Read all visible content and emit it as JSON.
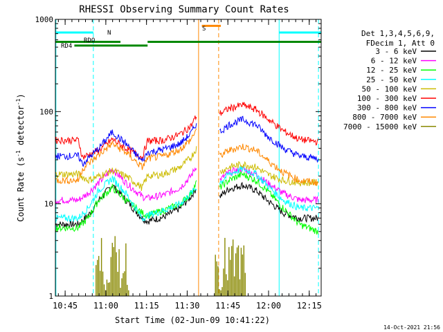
{
  "chart_data": {
    "type": "line",
    "title": "RHESSI Observing Summary Count Rates",
    "xlabel": "Start Time (02-Jun-09 10:41:22)",
    "ylabel_prefix": "Count Rate (s",
    "ylabel_sup1": "-1",
    "ylabel_mid": " detector",
    "ylabel_sup2": "-1",
    "ylabel_suffix": ")",
    "x_unit": "minutes since 10:41:22",
    "xlim": [
      0,
      98
    ],
    "ylim": [
      1,
      1000
    ],
    "yscale": "log",
    "x_ticks": [
      {
        "label": "10:45",
        "value": 3.6
      },
      {
        "label": "11:00",
        "value": 18.6
      },
      {
        "label": "11:15",
        "value": 33.6
      },
      {
        "label": "11:30",
        "value": 48.6
      },
      {
        "label": "11:45",
        "value": 63.6
      },
      {
        "label": "12:00",
        "value": 78.6
      },
      {
        "label": "12:15",
        "value": 93.6
      }
    ],
    "y_ticks": [
      {
        "label": "1",
        "value": 1
      },
      {
        "label": "10",
        "value": 10
      },
      {
        "label": "100",
        "value": 100
      },
      {
        "label": "1000",
        "value": 1000
      }
    ],
    "legend_header": [
      "Det 1,3,4,5,6,9,",
      "FDecim 1, Att 0"
    ],
    "legend_position": "right",
    "data_gap": [
      52.4,
      60.6
    ],
    "series": [
      {
        "name": "3 - 6 keV",
        "color": "#000000",
        "segments": [
          [
            0,
            6
          ],
          [
            8.5,
            6
          ],
          [
            13,
            8
          ],
          [
            16,
            11
          ],
          [
            21,
            16
          ],
          [
            26,
            11
          ],
          [
            32,
            7
          ],
          [
            34,
            6.5
          ],
          [
            40,
            7.2
          ],
          [
            46,
            9
          ],
          [
            50,
            12
          ],
          [
            52,
            15
          ]
        ],
        "post": [
          [
            60.6,
            12
          ],
          [
            64,
            14.5
          ],
          [
            69,
            16
          ],
          [
            74,
            14
          ],
          [
            78,
            11
          ],
          [
            84,
            8
          ],
          [
            90,
            7
          ],
          [
            97,
            7
          ]
        ]
      },
      {
        "name": "6 - 12 keV",
        "color": "#ff00ff",
        "segments": [
          [
            0,
            11
          ],
          [
            8.5,
            11
          ],
          [
            12,
            13
          ],
          [
            16,
            17
          ],
          [
            21,
            24
          ],
          [
            26,
            17
          ],
          [
            32,
            12
          ],
          [
            34,
            11.5
          ],
          [
            40,
            12.5
          ],
          [
            46,
            15
          ],
          [
            50,
            20
          ],
          [
            52,
            26
          ]
        ],
        "post": [
          [
            60.6,
            18
          ],
          [
            64,
            22
          ],
          [
            69,
            24
          ],
          [
            74,
            21
          ],
          [
            78,
            17
          ],
          [
            84,
            13
          ],
          [
            90,
            11
          ],
          [
            97,
            11
          ]
        ]
      },
      {
        "name": "12 - 25 keV",
        "color": "#00ff00",
        "segments": [
          [
            0,
            5.5
          ],
          [
            8.5,
            5.5
          ],
          [
            12,
            7
          ],
          [
            16,
            11
          ],
          [
            21,
            15
          ],
          [
            26,
            11
          ],
          [
            32,
            8
          ],
          [
            34,
            7.5
          ],
          [
            40,
            8.5
          ],
          [
            46,
            10
          ],
          [
            50,
            13
          ],
          [
            52,
            17
          ]
        ],
        "post": [
          [
            60.6,
            15
          ],
          [
            64,
            18
          ],
          [
            69,
            21
          ],
          [
            74,
            18
          ],
          [
            78,
            14
          ],
          [
            84,
            9
          ],
          [
            90,
            6
          ],
          [
            97,
            5
          ]
        ]
      },
      {
        "name": "25 - 50 keV",
        "color": "#00ffff",
        "segments": [
          [
            0,
            7
          ],
          [
            8.5,
            7
          ],
          [
            12,
            9
          ],
          [
            16,
            14
          ],
          [
            21,
            19
          ],
          [
            26,
            13
          ],
          [
            32,
            7
          ],
          [
            34,
            7.5
          ],
          [
            40,
            8.5
          ],
          [
            46,
            10
          ],
          [
            50,
            13
          ],
          [
            52,
            15
          ]
        ],
        "post": [
          [
            60.6,
            17
          ],
          [
            64,
            21
          ],
          [
            69,
            24
          ],
          [
            74,
            21
          ],
          [
            78,
            16
          ],
          [
            84,
            11
          ],
          [
            90,
            9
          ],
          [
            97,
            9
          ]
        ]
      },
      {
        "name": "50 - 100 keV",
        "color": "#ccbb00",
        "segments": [
          [
            0,
            21
          ],
          [
            8.5,
            21
          ],
          [
            12,
            18
          ],
          [
            16,
            20
          ],
          [
            21,
            23
          ],
          [
            26,
            20
          ],
          [
            32,
            15
          ],
          [
            34,
            20
          ],
          [
            40,
            21
          ],
          [
            46,
            25
          ],
          [
            50,
            32
          ],
          [
            52,
            40
          ]
        ],
        "post": [
          [
            60.6,
            22
          ],
          [
            64,
            25
          ],
          [
            69,
            27
          ],
          [
            74,
            25
          ],
          [
            78,
            21
          ],
          [
            84,
            18
          ],
          [
            90,
            17
          ],
          [
            97,
            17
          ]
        ]
      },
      {
        "name": "100 - 300 keV",
        "color": "#ff0000",
        "segments": [
          [
            0,
            49
          ],
          [
            8.5,
            49
          ],
          [
            10,
            32
          ],
          [
            16,
            38
          ],
          [
            21,
            50
          ],
          [
            26,
            40
          ],
          [
            32,
            32
          ],
          [
            34,
            48
          ],
          [
            40,
            49
          ],
          [
            46,
            57
          ],
          [
            50,
            70
          ],
          [
            52,
            90
          ]
        ],
        "post": [
          [
            60.6,
            95
          ],
          [
            64,
            108
          ],
          [
            69,
            118
          ],
          [
            74,
            105
          ],
          [
            78,
            85
          ],
          [
            84,
            62
          ],
          [
            90,
            50
          ],
          [
            97,
            47
          ]
        ]
      },
      {
        "name": "300 - 800 keV",
        "color": "#0000ff",
        "segments": [
          [
            0,
            33
          ],
          [
            8.5,
            33
          ],
          [
            10,
            27
          ],
          [
            16,
            40
          ],
          [
            21,
            60
          ],
          [
            26,
            45
          ],
          [
            32,
            29
          ],
          [
            34,
            36
          ],
          [
            40,
            39
          ],
          [
            46,
            45
          ],
          [
            50,
            58
          ],
          [
            52,
            75
          ]
        ],
        "post": [
          [
            60.6,
            60
          ],
          [
            64,
            72
          ],
          [
            69,
            82
          ],
          [
            74,
            72
          ],
          [
            78,
            55
          ],
          [
            84,
            40
          ],
          [
            90,
            33
          ],
          [
            97,
            31
          ]
        ]
      },
      {
        "name": "800 - 7000 keV",
        "color": "#ff8800",
        "segments": [
          [
            0,
            18
          ],
          [
            8.5,
            18
          ],
          [
            10,
            24
          ],
          [
            16,
            34
          ],
          [
            21,
            45
          ],
          [
            26,
            36
          ],
          [
            32,
            25
          ],
          [
            34,
            31
          ],
          [
            40,
            33
          ],
          [
            46,
            39
          ],
          [
            50,
            50
          ],
          [
            52,
            65
          ]
        ],
        "post": [
          [
            60.6,
            33
          ],
          [
            64,
            38
          ],
          [
            69,
            42
          ],
          [
            74,
            38
          ],
          [
            78,
            30
          ],
          [
            84,
            22
          ],
          [
            90,
            18
          ],
          [
            97,
            17
          ]
        ]
      },
      {
        "name": "7000 - 15000 keV",
        "color": "#888800",
        "segments": [],
        "post": []
      }
    ],
    "bursts_7000": [
      [
        15,
        27
      ],
      [
        59,
        70
      ]
    ],
    "annotations": {
      "rdo_label": "RDO",
      "rd4_label": "RD4",
      "n_label": "N",
      "s_label": "S"
    },
    "status_bars": [
      {
        "name": "night-cyan-1",
        "color": "#00ffff",
        "x": [
          0,
          14
        ],
        "level": 720
      },
      {
        "name": "night-cyan-2",
        "color": "#00ffff",
        "x": [
          82.5,
          98
        ],
        "level": 720
      },
      {
        "name": "rd4-green-1",
        "color": "#008800",
        "x": [
          0,
          24
        ],
        "level": 570
      },
      {
        "name": "rd4-green-2",
        "color": "#008800",
        "x": [
          34,
          98
        ],
        "level": 570
      },
      {
        "name": "rdo-green",
        "color": "#008800",
        "x": [
          7,
          34
        ],
        "level": 520
      },
      {
        "name": "saa-orange",
        "color": "#ff8800",
        "x": [
          54,
          61
        ],
        "level": 850
      }
    ],
    "vlines": [
      {
        "name": "vline-cyan-1",
        "color": "#00ffff",
        "x": 0.2,
        "dash": false
      },
      {
        "name": "vline-cyan-2",
        "color": "#00ffff",
        "x": 14,
        "dash": true
      },
      {
        "name": "vline-orange-1",
        "color": "#ff8800",
        "x": 52.8,
        "dash": false
      },
      {
        "name": "vline-orange-2",
        "color": "#ff8800",
        "x": 60.2,
        "dash": true
      },
      {
        "name": "vline-cyan-3",
        "color": "#00ffff",
        "x": 82.5,
        "dash": false
      },
      {
        "name": "vline-cyan-4",
        "color": "#00ffff",
        "x": 97,
        "dash": true
      }
    ]
  },
  "timestamp": "14-Oct-2021 21:56"
}
